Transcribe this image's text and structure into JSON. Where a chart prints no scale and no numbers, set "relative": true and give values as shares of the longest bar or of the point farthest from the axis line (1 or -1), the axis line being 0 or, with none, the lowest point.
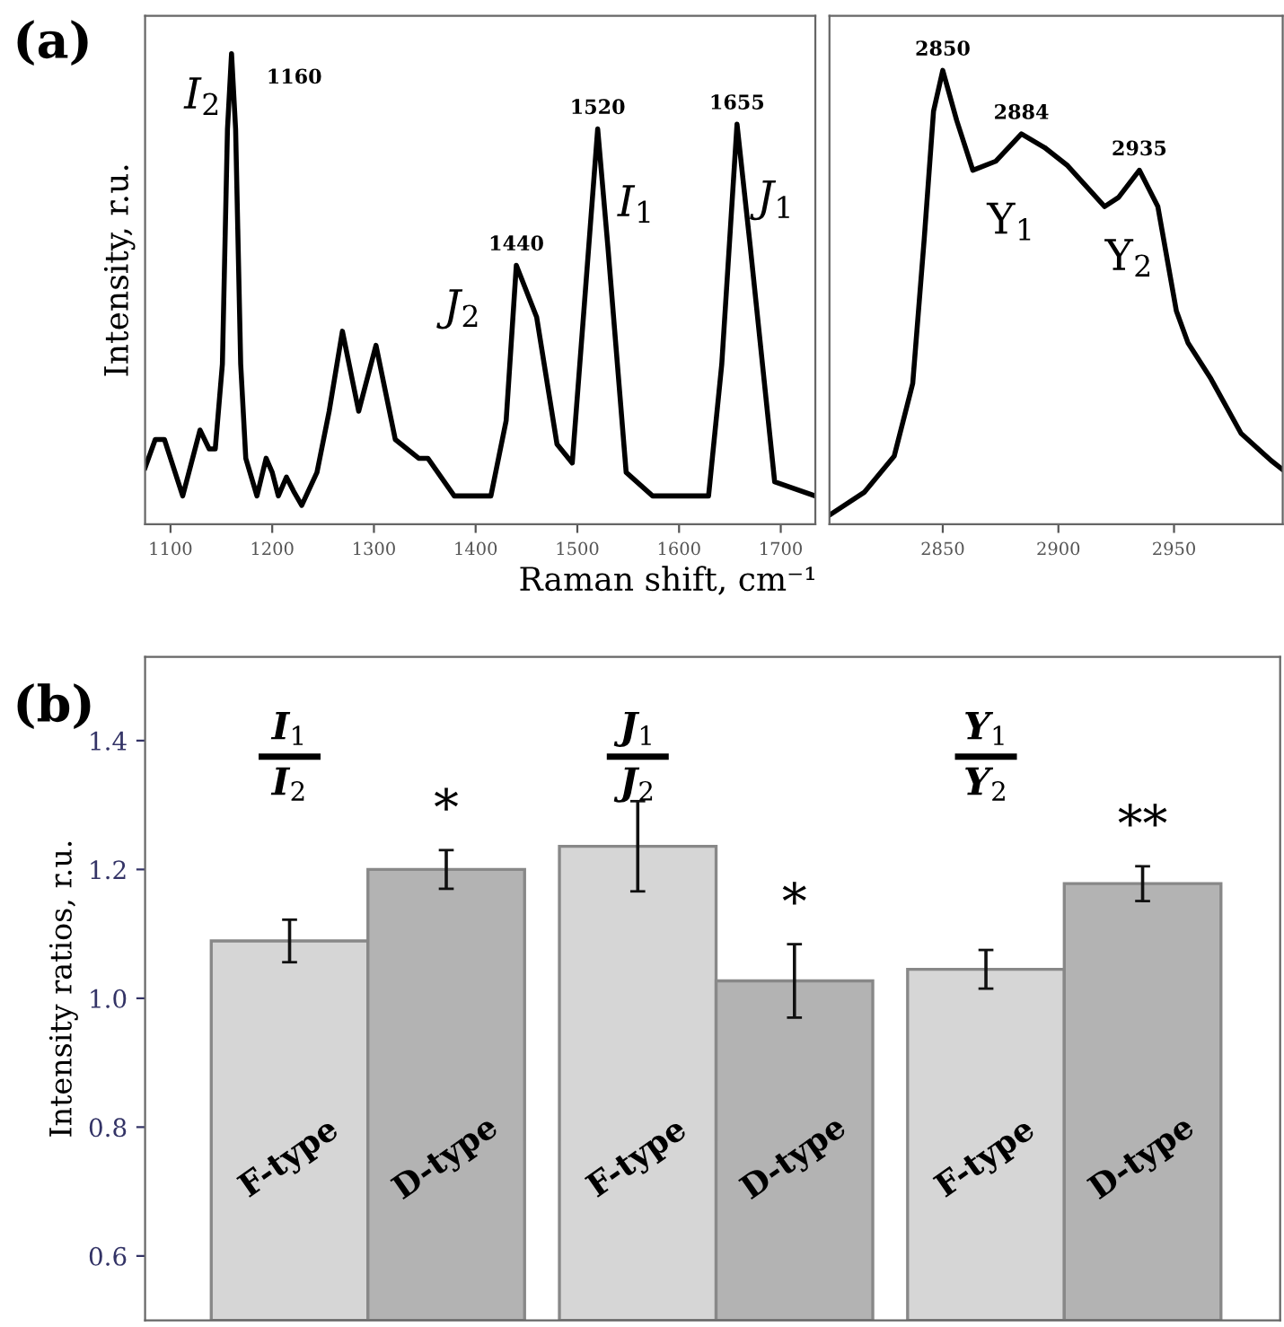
{
  "chart_data": [
    {
      "type": "line",
      "relative": true,
      "xlabel": "Raman shift, cm⁻¹",
      "ylabel": "Intensity, r.u.",
      "xlim": [
        1075,
        1734
      ],
      "xticks": [
        1100,
        1200,
        1300,
        1400,
        1500,
        1600,
        1700
      ],
      "tick_labels": "x",
      "grid": false,
      "series": [
        {
          "color": "#000000",
          "x": [
            1075,
            1085,
            1094,
            1112,
            1129,
            1138,
            1144,
            1151,
            1156,
            1160,
            1164,
            1169,
            1174,
            1185,
            1194,
            1200,
            1206,
            1214,
            1221,
            1229,
            1244,
            1256,
            1269,
            1285,
            1302,
            1321,
            1344,
            1353,
            1379,
            1415,
            1430,
            1440,
            1460,
            1480,
            1495,
            1507,
            1520,
            1530,
            1548,
            1574,
            1629,
            1642,
            1657,
            1670,
            1694,
            1734
          ],
          "values": [
            0.12,
            0.18,
            0.18,
            0.06,
            0.2,
            0.16,
            0.16,
            0.34,
            0.84,
            1.0,
            0.84,
            0.34,
            0.14,
            0.06,
            0.14,
            0.11,
            0.06,
            0.1,
            0.07,
            0.04,
            0.11,
            0.24,
            0.41,
            0.24,
            0.38,
            0.18,
            0.14,
            0.14,
            0.06,
            0.06,
            0.22,
            0.55,
            0.44,
            0.17,
            0.13,
            0.47,
            0.84,
            0.59,
            0.11,
            0.06,
            0.06,
            0.34,
            0.85,
            0.59,
            0.09,
            0.06
          ]
        }
      ],
      "annotations": [
        "(a)",
        {
          "text": "I$_{2}$",
          "x": 1160,
          "y": 1.0
        },
        {
          "text": "1160",
          "x": 1160,
          "y": 1.0
        },
        {
          "text": "1440",
          "x": 1440,
          "y": 0.55
        },
        {
          "text": "J$_{2}$",
          "x": 1440,
          "y": 0.55
        },
        {
          "text": "1520",
          "x": 1520,
          "y": 0.84
        },
        {
          "text": "I$_{1}$",
          "x": 1520,
          "y": 0.84
        },
        {
          "text": "1655",
          "x": 1657,
          "y": 0.85
        },
        {
          "text": "J$_{1}$",
          "x": 1657,
          "y": 0.85
        }
      ]
    },
    {
      "type": "line",
      "relative": true,
      "xlim": [
        2801,
        2997
      ],
      "xticks": [
        2850,
        2900,
        2950
      ],
      "tick_labels": "x",
      "grid": false,
      "series": [
        {
          "color": "#000000",
          "x": [
            2801,
            2816,
            2829,
            2837,
            2842,
            2846,
            2850,
            2856,
            2863,
            2873,
            2884,
            2894,
            2904,
            2920,
            2926,
            2935,
            2943,
            2951,
            2956,
            2966,
            2979,
            2992,
            2997
          ],
          "values": [
            0.02,
            0.07,
            0.15,
            0.31,
            0.63,
            0.91,
            1.0,
            0.89,
            0.78,
            0.8,
            0.86,
            0.83,
            0.79,
            0.7,
            0.72,
            0.78,
            0.7,
            0.47,
            0.4,
            0.32,
            0.2,
            0.14,
            0.12
          ]
        }
      ],
      "annotations": [
        {
          "text": "2850",
          "x": 2850,
          "y": 1.0
        },
        {
          "text": "2884",
          "x": 2884,
          "y": 0.86
        },
        {
          "text": "Y$_{1}$",
          "x": 2884,
          "y": 0.86
        },
        {
          "text": "2935",
          "x": 2935,
          "y": 0.78
        },
        {
          "text": "Y$_{2}$",
          "x": 2935,
          "y": 0.78
        }
      ]
    },
    {
      "type": "bar",
      "ylabel": "Intensity ratios, r.u.",
      "categories": [
        null,
        null,
        null
      ],
      "ylim": [
        0.5,
        1.53
      ],
      "yticks": [
        0.6,
        0.8,
        {
          "value": 1.0,
          "label": "1.0"
        },
        1.2,
        1.4
      ],
      "tick_labels": "y",
      "grid": false,
      "series": [
        {
          "name": "F-type",
          "color": "#d6d6d6",
          "values": [
            1.089,
            1.236,
            1.045
          ],
          "errors": [
            0.033,
            0.07,
            0.03
          ]
        },
        {
          "name": "D-type",
          "color": "#b3b3b3",
          "values": [
            1.2,
            1.027,
            1.178
          ],
          "errors": [
            0.03,
            0.057,
            0.027
          ]
        }
      ],
      "annotations": [
        "(b)",
        "I$_{1}$",
        "I$_{2}$",
        "*",
        "J$_{1}$",
        "J$_{2}$",
        "*",
        "Y$_{1}$",
        "Y$_{2}$",
        "**"
      ]
    }
  ]
}
